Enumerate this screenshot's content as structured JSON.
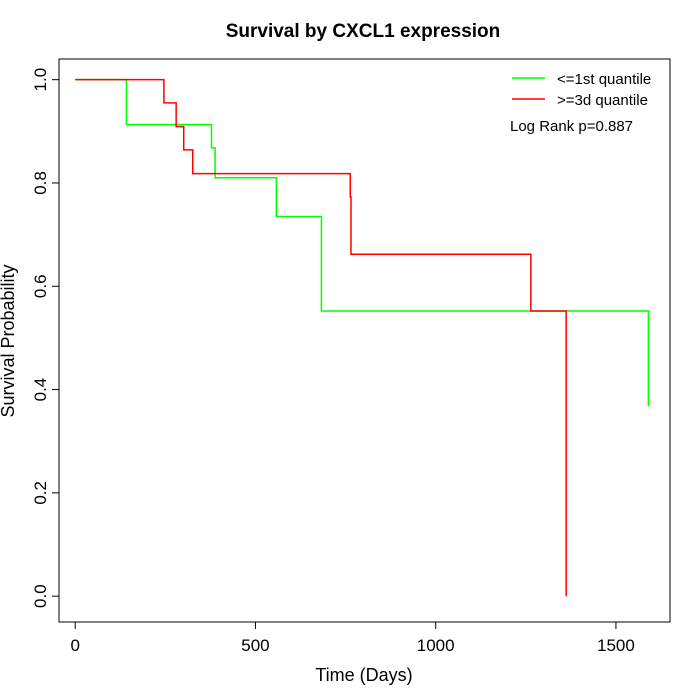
{
  "chart_data": {
    "type": "line",
    "title": "Survival by CXCL1 expression",
    "xlabel": "Time (Days)",
    "ylabel": "Survival Probability",
    "xlim": [
      -45,
      1650
    ],
    "ylim": [
      -0.05,
      1.04
    ],
    "xticks": [
      0,
      500,
      1000,
      1500
    ],
    "yticks": [
      0.0,
      0.2,
      0.4,
      0.6,
      0.8,
      1.0
    ],
    "xtick_labels": [
      "0",
      "500",
      "1000",
      "1500"
    ],
    "ytick_labels": [
      "0.0",
      "0.2",
      "0.4",
      "0.6",
      "0.8",
      "1.0"
    ],
    "grid": false,
    "legend_position": "top-right",
    "annotation": "Log Rank p=0.887",
    "series": [
      {
        "name": "<=1st quantile",
        "color": "#00ff00",
        "step": true,
        "x": [
          0,
          128,
          142,
          317,
          378,
          388,
          558,
          683,
          1590
        ],
        "y": [
          1.0,
          1.0,
          0.913,
          0.913,
          0.868,
          0.81,
          0.735,
          0.552,
          0.368
        ]
      },
      {
        "name": ">=3d quantile",
        "color": "#ff0000",
        "step": true,
        "x": [
          0,
          113,
          246,
          280,
          301,
          326,
          763,
          765,
          1264,
          1362
        ],
        "y": [
          1.0,
          1.0,
          0.955,
          0.909,
          0.864,
          0.818,
          0.773,
          0.662,
          0.552,
          0.276
        ],
        "end_drop_to": 0.0
      }
    ]
  }
}
